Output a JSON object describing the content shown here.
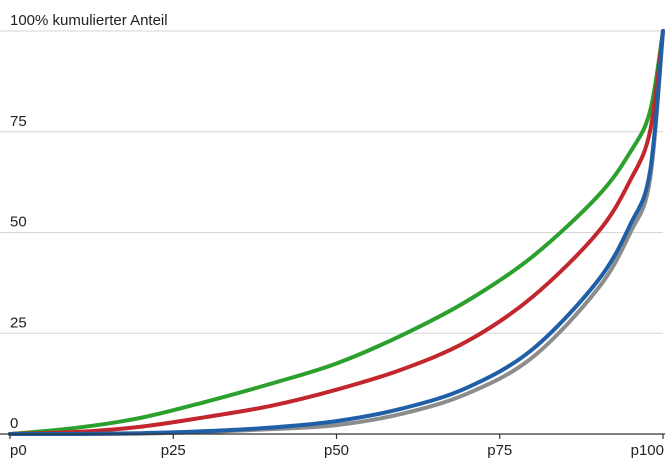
{
  "chart_data": {
    "type": "line",
    "title": "",
    "xlabel": "",
    "ylabel": "",
    "y_unit_label": "% kumulierter Anteil",
    "xlim": [
      0,
      100
    ],
    "ylim": [
      0,
      100
    ],
    "grid": true,
    "legend": "none",
    "x_ticks": [
      {
        "value": 0,
        "label": "p0"
      },
      {
        "value": 25,
        "label": "p25"
      },
      {
        "value": 50,
        "label": "p50"
      },
      {
        "value": 75,
        "label": "p75"
      },
      {
        "value": 100,
        "label": "p100"
      }
    ],
    "y_ticks": [
      {
        "value": 0,
        "label": "0"
      },
      {
        "value": 25,
        "label": "25"
      },
      {
        "value": 50,
        "label": "50"
      },
      {
        "value": 75,
        "label": "75"
      },
      {
        "value": 100,
        "label": "100"
      }
    ],
    "x": [
      0,
      10,
      20,
      30,
      40,
      50,
      60,
      70,
      80,
      90,
      95,
      98,
      100
    ],
    "series": [
      {
        "color": "#2ca02c",
        "values": [
          0,
          1.5,
          4,
          8,
          12.5,
          17.5,
          24.5,
          33,
          44,
          59,
          70,
          80,
          100
        ]
      },
      {
        "color": "#c1272d",
        "values": [
          0,
          0.5,
          1.8,
          4.2,
          7,
          11,
          16,
          23,
          34,
          50,
          63,
          75,
          100
        ]
      },
      {
        "color": "#8c8c8c",
        "values": [
          0,
          0,
          0.1,
          0.5,
          1.2,
          2.2,
          5,
          10,
          19,
          36,
          50,
          63,
          100
        ]
      },
      {
        "color": "#1f5fa8",
        "values": [
          0,
          0,
          0.2,
          0.7,
          1.6,
          3.2,
          6.3,
          11.5,
          21,
          38,
          52,
          65,
          100
        ]
      }
    ]
  }
}
